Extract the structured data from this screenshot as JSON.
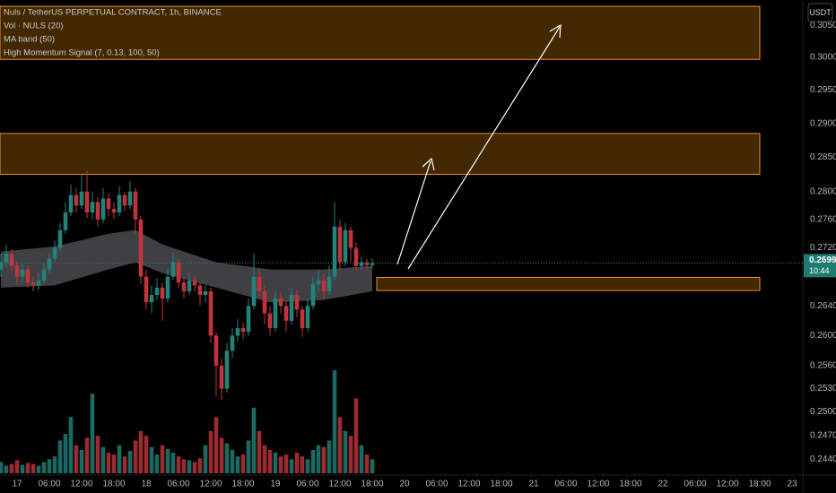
{
  "chart_data": {
    "type": "candlestick",
    "title": "Nuls / TetherUS PERPETUAL CONTRACT, 1h, BINANCE",
    "indicators": [
      "Vol · NULS (20)",
      "MA band (50)",
      "High Momentum Signal (7, 0.13, 100, 50)"
    ],
    "currency": "USDT",
    "log_scale": true,
    "grid": false,
    "ylim": [
      0.242,
      0.309
    ],
    "yticks": [
      {
        "value": 0.305,
        "label": "0.3050"
      },
      {
        "value": 0.3,
        "label": "0.3000"
      },
      {
        "value": 0.295,
        "label": "0.2950"
      },
      {
        "value": 0.29,
        "label": "0.2900"
      },
      {
        "value": 0.285,
        "label": "0.2850"
      },
      {
        "value": 0.28,
        "label": "0.2800"
      },
      {
        "value": 0.276,
        "label": "0.2760"
      },
      {
        "value": 0.272,
        "label": "0.2720"
      },
      {
        "value": 0.264,
        "label": "0.2640"
      },
      {
        "value": 0.26,
        "label": "0.2600"
      },
      {
        "value": 0.256,
        "label": "0.2560"
      },
      {
        "value": 0.253,
        "label": "0.2530"
      },
      {
        "value": 0.25,
        "label": "0.2500"
      },
      {
        "value": 0.247,
        "label": "0.2470"
      },
      {
        "value": 0.244,
        "label": "0.2440"
      }
    ],
    "x_labels": [
      {
        "index": 3,
        "label": "17"
      },
      {
        "index": 9,
        "label": "06:00"
      },
      {
        "index": 15,
        "label": "12:00"
      },
      {
        "index": 21,
        "label": "18:00"
      },
      {
        "index": 27,
        "label": "18"
      },
      {
        "index": 33,
        "label": "06:00"
      },
      {
        "index": 39,
        "label": "12:00"
      },
      {
        "index": 45,
        "label": "18:00"
      },
      {
        "index": 51,
        "label": "19"
      },
      {
        "index": 57,
        "label": "06:00"
      },
      {
        "index": 63,
        "label": "12:00"
      },
      {
        "index": 69,
        "label": "18:00"
      },
      {
        "index": 75,
        "label": "20"
      },
      {
        "index": 81,
        "label": "06:00"
      },
      {
        "index": 87,
        "label": "12:00"
      },
      {
        "index": 93,
        "label": "18:00"
      },
      {
        "index": 99,
        "label": "21"
      },
      {
        "index": 105,
        "label": "06:00"
      },
      {
        "index": 111,
        "label": "12:00"
      },
      {
        "index": 117,
        "label": "18:00"
      },
      {
        "index": 123,
        "label": "22"
      },
      {
        "index": 129,
        "label": "06:00"
      },
      {
        "index": 135,
        "label": "12:00"
      },
      {
        "index": 141,
        "label": "18:00"
      },
      {
        "index": 147,
        "label": "23"
      }
    ],
    "up_color": "#22837a",
    "down_color": "#c2343d",
    "candles": [
      [
        0.269,
        0.2712,
        0.268,
        0.27
      ],
      [
        0.27,
        0.2725,
        0.2692,
        0.2712
      ],
      [
        0.2712,
        0.2718,
        0.2688,
        0.2695
      ],
      [
        0.2695,
        0.27,
        0.267,
        0.268
      ],
      [
        0.268,
        0.2698,
        0.2672,
        0.269
      ],
      [
        0.269,
        0.2695,
        0.2665,
        0.2672
      ],
      [
        0.2672,
        0.268,
        0.266,
        0.2668
      ],
      [
        0.2668,
        0.2685,
        0.2662,
        0.2675
      ],
      [
        0.2675,
        0.2698,
        0.267,
        0.269
      ],
      [
        0.269,
        0.2712,
        0.2685,
        0.2705
      ],
      [
        0.2705,
        0.273,
        0.27,
        0.272
      ],
      [
        0.272,
        0.2755,
        0.2715,
        0.2745
      ],
      [
        0.2745,
        0.2785,
        0.274,
        0.277
      ],
      [
        0.277,
        0.281,
        0.2765,
        0.2795
      ],
      [
        0.2795,
        0.2805,
        0.277,
        0.278
      ],
      [
        0.278,
        0.2825,
        0.2775,
        0.28
      ],
      [
        0.28,
        0.283,
        0.2762,
        0.277
      ],
      [
        0.277,
        0.28,
        0.276,
        0.2785
      ],
      [
        0.2785,
        0.2792,
        0.275,
        0.276
      ],
      [
        0.276,
        0.2805,
        0.2755,
        0.279
      ],
      [
        0.279,
        0.2798,
        0.2765,
        0.2775
      ],
      [
        0.2775,
        0.2785,
        0.276,
        0.277
      ],
      [
        0.277,
        0.2808,
        0.2765,
        0.2795
      ],
      [
        0.2795,
        0.28,
        0.2772,
        0.278
      ],
      [
        0.278,
        0.2815,
        0.2775,
        0.28
      ],
      [
        0.28,
        0.2805,
        0.274,
        0.276
      ],
      [
        0.276,
        0.2765,
        0.267,
        0.268
      ],
      [
        0.268,
        0.269,
        0.2635,
        0.2645
      ],
      [
        0.2645,
        0.2668,
        0.263,
        0.2655
      ],
      [
        0.2655,
        0.2678,
        0.2648,
        0.2665
      ],
      [
        0.2665,
        0.2672,
        0.262,
        0.265
      ],
      [
        0.265,
        0.269,
        0.2645,
        0.268
      ],
      [
        0.268,
        0.2715,
        0.2675,
        0.27
      ],
      [
        0.27,
        0.2705,
        0.2665,
        0.2672
      ],
      [
        0.2672,
        0.268,
        0.265,
        0.266
      ],
      [
        0.266,
        0.2685,
        0.2655,
        0.2675
      ],
      [
        0.2675,
        0.2682,
        0.266,
        0.2668
      ],
      [
        0.2668,
        0.2672,
        0.264,
        0.2655
      ],
      [
        0.2655,
        0.2668,
        0.2645,
        0.266
      ],
      [
        0.266,
        0.2665,
        0.259,
        0.26
      ],
      [
        0.26,
        0.2605,
        0.252,
        0.256
      ],
      [
        0.256,
        0.257,
        0.2515,
        0.253
      ],
      [
        0.253,
        0.259,
        0.2525,
        0.258
      ],
      [
        0.258,
        0.261,
        0.257,
        0.26
      ],
      [
        0.26,
        0.2622,
        0.2592,
        0.261
      ],
      [
        0.261,
        0.2618,
        0.2595,
        0.2605
      ],
      [
        0.2605,
        0.265,
        0.26,
        0.264
      ],
      [
        0.264,
        0.2712,
        0.2635,
        0.268
      ],
      [
        0.268,
        0.269,
        0.265,
        0.266
      ],
      [
        0.266,
        0.2668,
        0.2615,
        0.263
      ],
      [
        0.263,
        0.264,
        0.26,
        0.261
      ],
      [
        0.261,
        0.266,
        0.2605,
        0.265
      ],
      [
        0.265,
        0.2658,
        0.263,
        0.264
      ],
      [
        0.264,
        0.2648,
        0.2605,
        0.262
      ],
      [
        0.262,
        0.2665,
        0.2615,
        0.2655
      ],
      [
        0.2655,
        0.2662,
        0.2625,
        0.2635
      ],
      [
        0.2635,
        0.264,
        0.2598,
        0.261
      ],
      [
        0.261,
        0.265,
        0.2605,
        0.264
      ],
      [
        0.264,
        0.268,
        0.2635,
        0.267
      ],
      [
        0.267,
        0.269,
        0.266,
        0.2675
      ],
      [
        0.2675,
        0.2685,
        0.265,
        0.266
      ],
      [
        0.266,
        0.2695,
        0.2655,
        0.268
      ],
      [
        0.268,
        0.2785,
        0.2675,
        0.275
      ],
      [
        0.275,
        0.276,
        0.269,
        0.27
      ],
      [
        0.27,
        0.2755,
        0.2695,
        0.2745
      ],
      [
        0.2745,
        0.275,
        0.27,
        0.272
      ],
      [
        0.272,
        0.2728,
        0.2688,
        0.2695
      ],
      [
        0.2695,
        0.2708,
        0.269,
        0.27
      ],
      [
        0.27,
        0.2705,
        0.269,
        0.2696
      ],
      [
        0.2696,
        0.2705,
        0.2692,
        0.2699
      ]
    ],
    "volume": [
      12,
      8,
      10,
      14,
      9,
      11,
      10,
      8,
      12,
      15,
      18,
      35,
      42,
      60,
      30,
      25,
      38,
      85,
      40,
      28,
      22,
      20,
      30,
      18,
      24,
      35,
      45,
      40,
      28,
      20,
      30,
      26,
      22,
      18,
      15,
      14,
      12,
      16,
      30,
      45,
      60,
      38,
      32,
      25,
      18,
      20,
      35,
      70,
      45,
      30,
      25,
      22,
      18,
      20,
      15,
      22,
      18,
      15,
      25,
      30,
      28,
      35,
      110,
      60,
      45,
      40,
      80,
      30,
      20,
      15
    ],
    "ma_band": {
      "index": [
        0,
        10,
        20,
        25,
        30,
        40,
        50,
        60,
        69
      ],
      "upper": [
        0.2715,
        0.2722,
        0.274,
        0.2745,
        0.2725,
        0.27,
        0.269,
        0.269,
        0.2695
      ],
      "lower": [
        0.2665,
        0.2668,
        0.269,
        0.27,
        0.2685,
        0.2665,
        0.2645,
        0.2648,
        0.266
      ]
    },
    "zones": [
      {
        "top": 0.308,
        "bottom": 0.2997,
        "start": 0,
        "end": 141
      },
      {
        "top": 0.2885,
        "bottom": 0.2825,
        "start": 0,
        "end": 141
      },
      {
        "top": 0.2679,
        "bottom": 0.2661,
        "start": 70,
        "end": 141
      }
    ],
    "last_price": 0.2699,
    "countdown": "10:44"
  }
}
